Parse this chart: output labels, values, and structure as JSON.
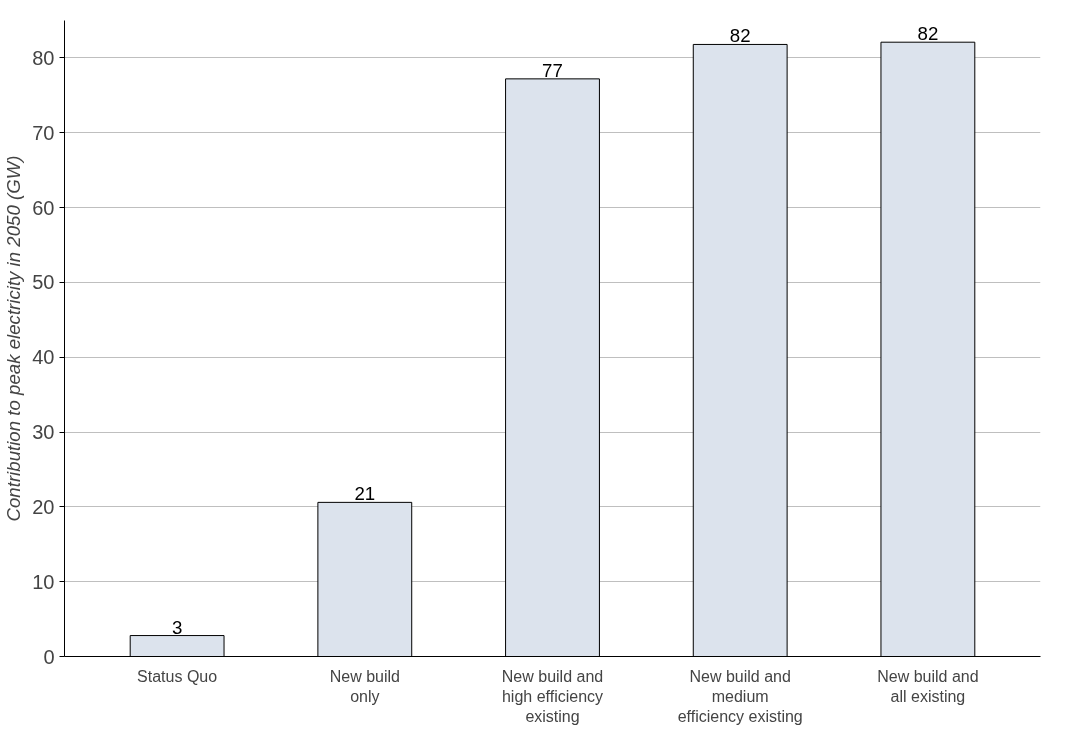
{
  "chart_data": {
    "type": "bar",
    "ylabel": "Contribution to peak electricity in 2050 (GW)",
    "categories": [
      "Status Quo",
      "New build\nonly",
      "New build and\nhigh efficiency\nexisting",
      "New build and\nmedium\nefficiency existing",
      "New build and\nall existing"
    ],
    "values": [
      2.8,
      20.6,
      77.2,
      81.8,
      82.1
    ],
    "value_labels": [
      "3",
      "21",
      "77",
      "82",
      "82"
    ],
    "color": "#dce3ed",
    "ylim": [
      0,
      85
    ],
    "yticks": [
      0,
      10,
      20,
      30,
      40,
      50,
      60,
      70,
      80
    ],
    "grid": "y"
  }
}
